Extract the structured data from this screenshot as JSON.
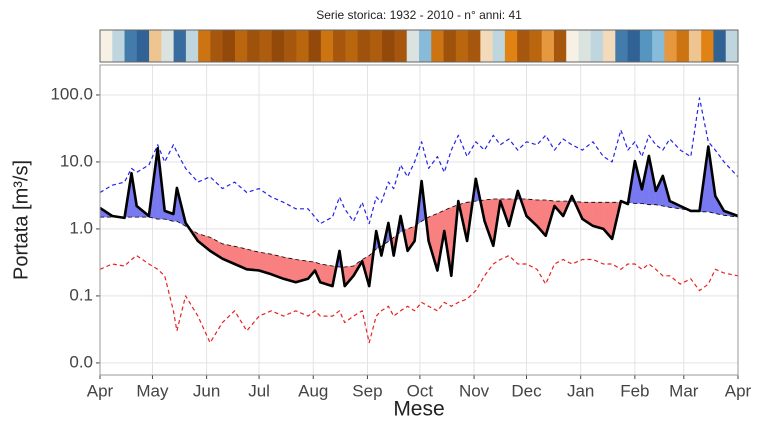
{
  "chart_data": {
    "type": "line",
    "title": "Serie storica:  1932 - 2010 - n° anni: 41",
    "xlabel": "Mese",
    "ylabel": "Portata [m³/s]",
    "log_y": true,
    "grid": true,
    "xlim": [
      0,
      365
    ],
    "xticks": [
      {
        "value": 0,
        "label": "Apr"
      },
      {
        "value": 30,
        "label": "May"
      },
      {
        "value": 61,
        "label": "Jun"
      },
      {
        "value": 91,
        "label": "Jul"
      },
      {
        "value": 122,
        "label": "Aug"
      },
      {
        "value": 153,
        "label": "Sep"
      },
      {
        "value": 183,
        "label": "Oct"
      },
      {
        "value": 214,
        "label": "Nov"
      },
      {
        "value": 244,
        "label": "Dec"
      },
      {
        "value": 275,
        "label": "Jan"
      },
      {
        "value": 306,
        "label": "Feb"
      },
      {
        "value": 334,
        "label": "Mar"
      },
      {
        "value": 365,
        "label": "Apr"
      }
    ],
    "ylim": [
      0.0066,
      280
    ],
    "yticks": [
      {
        "value": 0.01,
        "label": "0.0"
      },
      {
        "value": 0.1,
        "label": "0.1"
      },
      {
        "value": 1,
        "label": "1.0"
      },
      {
        "value": 10,
        "label": "10.0"
      },
      {
        "value": 100,
        "label": "100.0"
      }
    ],
    "x": [
      0,
      7,
      14,
      18,
      21,
      28,
      33,
      37,
      42,
      44,
      49,
      56,
      63,
      70,
      77,
      84,
      91,
      98,
      105,
      112,
      119,
      123,
      126,
      133,
      137,
      140,
      145,
      150,
      154,
      158,
      161,
      165,
      168,
      172,
      176,
      180,
      184,
      188,
      193,
      197,
      201,
      205,
      210,
      215,
      220,
      225,
      229,
      234,
      239,
      244,
      250,
      255,
      260,
      265,
      270,
      276,
      282,
      288,
      293,
      298,
      302,
      306,
      310,
      314,
      318,
      322,
      326,
      332,
      338,
      343,
      348,
      352,
      357,
      365
    ],
    "series": [
      {
        "color": "#2323e6",
        "dashed": true,
        "width": 1.2,
        "values": [
          3.5,
          4.5,
          5,
          8,
          7,
          9,
          18,
          10,
          18,
          14,
          8,
          5,
          6,
          4,
          5,
          3.5,
          4,
          3,
          2.5,
          2,
          2,
          1.5,
          1.2,
          1.5,
          3,
          2,
          1.3,
          2.5,
          1.2,
          3,
          2.5,
          5,
          4,
          9,
          6,
          10,
          20,
          8,
          12,
          7,
          15,
          25,
          12,
          20,
          15,
          25,
          18,
          22,
          15,
          20,
          18,
          25,
          15,
          22,
          18,
          15,
          20,
          12,
          10,
          30,
          15,
          20,
          12,
          25,
          18,
          15,
          22,
          15,
          12,
          90,
          20,
          15,
          10,
          6
        ]
      },
      {
        "color": "#e62323",
        "dashed": true,
        "width": 1.2,
        "values": [
          0.25,
          0.3,
          0.28,
          0.35,
          0.4,
          0.3,
          0.25,
          0.2,
          0.06,
          0.03,
          0.1,
          0.05,
          0.02,
          0.04,
          0.06,
          0.03,
          0.05,
          0.06,
          0.05,
          0.06,
          0.05,
          0.06,
          0.05,
          0.05,
          0.06,
          0.04,
          0.05,
          0.06,
          0.02,
          0.05,
          0.06,
          0.07,
          0.05,
          0.06,
          0.07,
          0.06,
          0.08,
          0.07,
          0.06,
          0.08,
          0.07,
          0.08,
          0.09,
          0.12,
          0.2,
          0.3,
          0.35,
          0.4,
          0.3,
          0.3,
          0.25,
          0.15,
          0.3,
          0.35,
          0.3,
          0.35,
          0.35,
          0.3,
          0.3,
          0.25,
          0.3,
          0.3,
          0.25,
          0.3,
          0.25,
          0.2,
          0.2,
          0.15,
          0.18,
          0.12,
          0.15,
          0.25,
          0.22,
          0.2
        ]
      },
      {
        "color": "#000000",
        "dashed": true,
        "width": 0.8,
        "values": [
          1.5,
          1.5,
          1.5,
          1.5,
          1.5,
          1.5,
          1.4,
          1.4,
          1.3,
          1.3,
          1.1,
          0.85,
          0.75,
          0.6,
          0.55,
          0.5,
          0.45,
          0.42,
          0.38,
          0.35,
          0.33,
          0.32,
          0.3,
          0.28,
          0.27,
          0.27,
          0.28,
          0.35,
          0.4,
          0.5,
          0.55,
          0.65,
          0.75,
          0.9,
          1.0,
          1.1,
          1.3,
          1.5,
          1.7,
          1.9,
          2.1,
          2.3,
          2.5,
          2.6,
          2.7,
          2.8,
          2.8,
          2.8,
          2.8,
          2.8,
          2.7,
          2.7,
          2.6,
          2.6,
          2.6,
          2.5,
          2.5,
          2.5,
          2.5,
          2.5,
          2.5,
          2.4,
          2.4,
          2.3,
          2.3,
          2.2,
          2.1,
          2.0,
          1.9,
          1.8,
          1.8,
          1.7,
          1.6,
          1.5
        ]
      },
      {
        "color": "#000000",
        "dashed": false,
        "width": 2.6,
        "values": [
          2.06,
          1.56,
          1.46,
          6.8,
          2.2,
          1.56,
          16,
          1.86,
          1.67,
          4.1,
          1.23,
          0.66,
          0.47,
          0.36,
          0.3,
          0.25,
          0.24,
          0.21,
          0.18,
          0.16,
          0.18,
          0.24,
          0.16,
          0.14,
          0.47,
          0.14,
          0.2,
          0.33,
          0.14,
          0.93,
          0.4,
          1.23,
          0.4,
          1.56,
          0.47,
          0.66,
          5.2,
          0.66,
          0.24,
          0.93,
          0.2,
          2.6,
          0.66,
          5.6,
          1.32,
          0.56,
          2.6,
          1.11,
          3.7,
          1.56,
          1.11,
          0.79,
          2.2,
          1.56,
          3.1,
          1.41,
          1.11,
          1.0,
          0.71,
          2.6,
          2.36,
          10.3,
          3.9,
          12.3,
          3.7,
          6.2,
          2.6,
          2.2,
          1.86,
          1.86,
          17,
          3.1,
          1.86,
          1.56
        ]
      }
    ],
    "shading": {
      "above": "#7878f0",
      "below": "#f88080"
    },
    "strip": {
      "range": [
        0,
        100
      ],
      "colors": [
        "#7f3b08",
        "#e08214",
        "#f7f0e4",
        "#6baed6",
        "#08306b"
      ],
      "values": [
        50,
        60,
        85,
        90,
        40,
        55,
        88,
        60,
        20,
        10,
        5,
        15,
        8,
        12,
        5,
        10,
        15,
        5,
        20,
        10,
        15,
        8,
        12,
        5,
        10,
        55,
        70,
        20,
        8,
        15,
        10,
        45,
        60,
        25,
        10,
        15,
        30,
        10,
        50,
        55,
        60,
        45,
        85,
        90,
        80,
        70,
        30,
        20,
        40,
        25,
        90,
        60
      ]
    }
  }
}
